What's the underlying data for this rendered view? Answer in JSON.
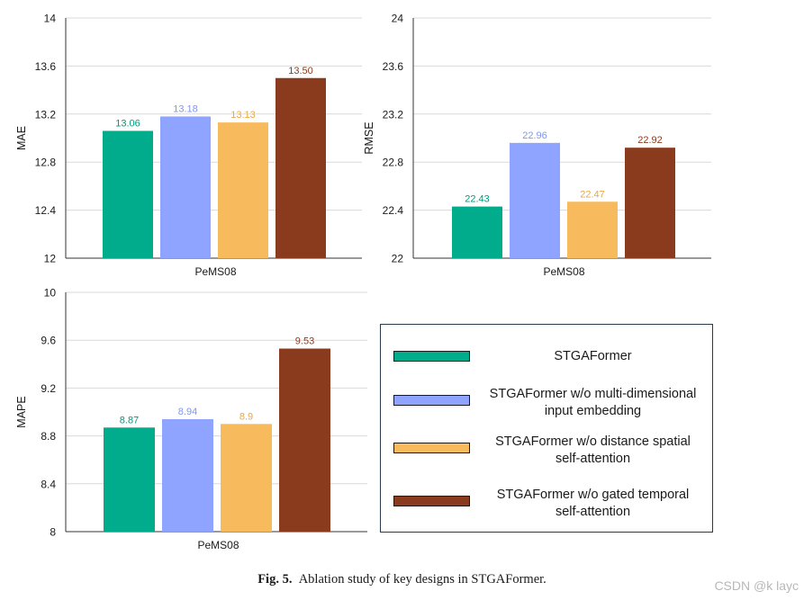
{
  "chart_data": [
    {
      "type": "bar",
      "ylabel": "MAE",
      "xlabel": "PeMS08",
      "ylim": [
        12,
        14
      ],
      "yticks": [
        "12",
        "12.4",
        "12.8",
        "13.2",
        "13.6",
        "14"
      ],
      "values": [
        13.06,
        13.18,
        13.13,
        13.5
      ],
      "value_labels": [
        "13.06",
        "13.18",
        "13.13",
        "13.50"
      ],
      "grid": true
    },
    {
      "type": "bar",
      "ylabel": "RMSE",
      "xlabel": "PeMS08",
      "ylim": [
        22,
        24
      ],
      "yticks": [
        "22",
        "22.4",
        "22.8",
        "23.2",
        "23.6",
        "24"
      ],
      "values": [
        22.43,
        22.96,
        22.47,
        22.92
      ],
      "value_labels": [
        "22.43",
        "22.96",
        "22.47",
        "22.92"
      ],
      "grid": true
    },
    {
      "type": "bar",
      "ylabel": "MAPE",
      "xlabel": "PeMS08",
      "ylim": [
        8,
        10
      ],
      "yticks": [
        "8",
        "8.4",
        "8.8",
        "9.2",
        "9.6",
        "10"
      ],
      "values": [
        8.87,
        8.94,
        8.9,
        9.53
      ],
      "value_labels": [
        "8.87",
        "8.94",
        "8.9",
        "9.53"
      ],
      "grid": true
    }
  ],
  "series": [
    {
      "name": "STGAFormer",
      "color": "#00ac8c",
      "label_color": "#009a7c"
    },
    {
      "name": "STGAFormer w/o multi-dimensional\ninput embedding",
      "color": "#8ea4ff",
      "label_color": "#7f96f0"
    },
    {
      "name": "STGAFormer w/o distance spatial\nself-attention",
      "color": "#f7bb5d",
      "label_color": "#e9a942"
    },
    {
      "name": "STGAFormer w/o gated temporal\nself-attention",
      "color": "#8a3b1e",
      "label_color": "#8a3b1e"
    }
  ],
  "caption": {
    "label": "Fig. 5.",
    "text": "Ablation study of key designs in STGAFormer."
  },
  "watermark": "CSDN @k layc"
}
